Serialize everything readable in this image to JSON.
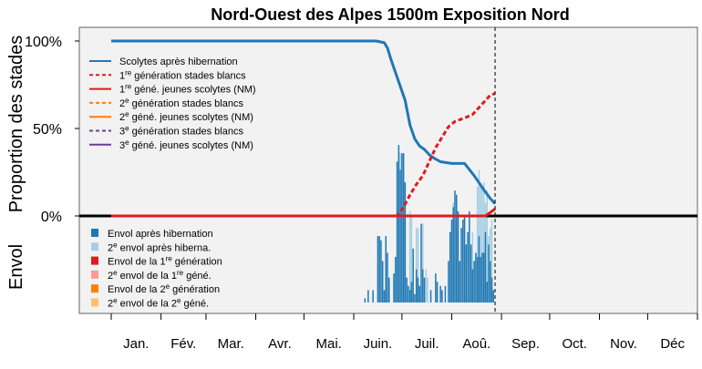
{
  "chart_data": {
    "type": "line",
    "title": "Nord-Ouest des Alpes 1500m Exposition Nord",
    "ylabel": "Proportion des stades",
    "ylabel_lower": "Envol",
    "ylim": [
      0,
      100
    ],
    "y_ticks": [
      "0%",
      "50%",
      "100%"
    ],
    "x_tick_labels": [
      "Jan.",
      "Fév.",
      "Mar.",
      "Avr.",
      "Mai.",
      "Juin.",
      "Juil.",
      "Aoû.",
      "Sep.",
      "Oct.",
      "Nov.",
      "Déc"
    ],
    "current_day": 239,
    "grid": false,
    "legend_lines": [
      {
        "name": "Scolytes après hibernation",
        "color": "#1f78b4",
        "dash": false
      },
      {
        "pre": "1",
        "sup": "re",
        "post": " génération stades blancs",
        "color": "#e31a1c",
        "dash": true
      },
      {
        "pre": "1",
        "sup": "re",
        "post": " géné. jeunes scolytes (NM)",
        "color": "#e31a1c",
        "dash": false
      },
      {
        "pre": "2",
        "sup": "e",
        "post": " génération stades blancs",
        "color": "#ff7f00",
        "dash": true
      },
      {
        "pre": "2",
        "sup": "e",
        "post": " géné. jeunes scolytes (NM)",
        "color": "#ff7f00",
        "dash": false
      },
      {
        "pre": "3",
        "sup": "e",
        "post": " génération stades blancs",
        "color": "#6a3d9a",
        "dash": true
      },
      {
        "pre": "3",
        "sup": "e",
        "post": " géné. jeunes scolytes (NM)",
        "color": "#6a3d9a",
        "dash": false
      }
    ],
    "legend_bars": [
      {
        "name": "Envol après hibernation",
        "color": "#1f78b4"
      },
      {
        "pre": "2",
        "sup": "e",
        "post": " envol après hiberna.",
        "color": "#a6cee3"
      },
      {
        "pre": "Envol de la 1",
        "sup": "re",
        "post": " génération",
        "color": "#e31a1c"
      },
      {
        "pre": "2",
        "sup": "e",
        "post": " envol de la 1",
        "sup2": "re",
        "post2": " géné.",
        "color": "#fb9a99"
      },
      {
        "pre": "Envol de la 2",
        "sup": "e",
        "post": " génération",
        "color": "#ff7f00"
      },
      {
        "pre": "2",
        "sup": "e",
        "post": " envol de la 2",
        "sup2": "e",
        "post2": " géné.",
        "color": "#fdbf6f"
      }
    ],
    "series": [
      {
        "name": "Scolytes après hibernation",
        "color": "#1f78b4",
        "x": [
          0,
          165,
          170,
          172,
          174,
          177,
          180,
          183,
          186,
          189,
          192,
          195,
          198,
          201,
          205,
          212,
          220,
          226,
          232,
          236,
          239
        ],
        "y": [
          100,
          100,
          99,
          96,
          90,
          82,
          74,
          66,
          52,
          44,
          40,
          38,
          35,
          33,
          31,
          30,
          30,
          23,
          15,
          10,
          7
        ]
      },
      {
        "name": "1re génération stades blancs",
        "color": "#e31a1c",
        "x": [
          0,
          178,
          182,
          186,
          190,
          194,
          198,
          202,
          206,
          210,
          214,
          220,
          225,
          229,
          233,
          236,
          239
        ],
        "y": [
          0,
          0,
          5,
          12,
          18,
          23,
          31,
          39,
          45,
          51,
          54,
          56,
          58,
          62,
          66,
          69,
          70
        ]
      },
      {
        "name": "1re géné. jeunes scolytes (NM)",
        "color": "#e31a1c",
        "x": [
          0,
          233,
          236,
          239
        ],
        "y": [
          0,
          0,
          2,
          4
        ]
      }
    ],
    "envol_bars": {
      "y_max": 40,
      "flight_after_hibernation": {
        "color": "#1f78b4",
        "x": [
          158,
          160,
          163,
          166,
          167,
          168,
          169,
          170,
          171,
          172,
          173,
          176,
          177,
          178,
          179,
          180,
          181,
          182,
          183,
          184,
          185,
          186,
          187,
          188,
          189,
          190,
          191,
          192,
          193,
          194,
          195,
          199,
          202,
          203,
          205,
          206,
          208,
          210,
          211,
          212,
          213,
          214,
          215,
          216,
          217,
          218,
          219,
          220,
          221,
          222,
          223,
          224,
          225,
          226,
          227,
          228,
          229,
          230,
          231,
          232,
          233,
          234,
          235,
          236,
          237,
          238
        ],
        "y": [
          1,
          3,
          3,
          16,
          16,
          15,
          10,
          3,
          16,
          12,
          6,
          7,
          11,
          34,
          38,
          32,
          36,
          36,
          29,
          6,
          4,
          3,
          5,
          13,
          2,
          8,
          6,
          4,
          19,
          8,
          6,
          3,
          7,
          5,
          4,
          3,
          4,
          10,
          17,
          20,
          23,
          27,
          26,
          22,
          10,
          18,
          20,
          21,
          14,
          17,
          22,
          14,
          8,
          10,
          12,
          11,
          16,
          11,
          12,
          12,
          17,
          5,
          14,
          10,
          6,
          3
        ]
      },
      "second_flight_after_hibernation": {
        "color": "#a6cee3",
        "x": [
          176,
          180,
          181,
          182,
          186,
          187,
          190,
          191,
          194,
          196,
          197,
          213,
          214,
          225,
          228,
          229,
          230,
          231,
          232,
          233,
          234,
          235,
          236,
          237
        ],
        "y": [
          7,
          36,
          5,
          36,
          22,
          21,
          18,
          18,
          19,
          8,
          6,
          24,
          20,
          17,
          28,
          32,
          28,
          28,
          29,
          24,
          27,
          16,
          18,
          20
        ]
      }
    }
  }
}
